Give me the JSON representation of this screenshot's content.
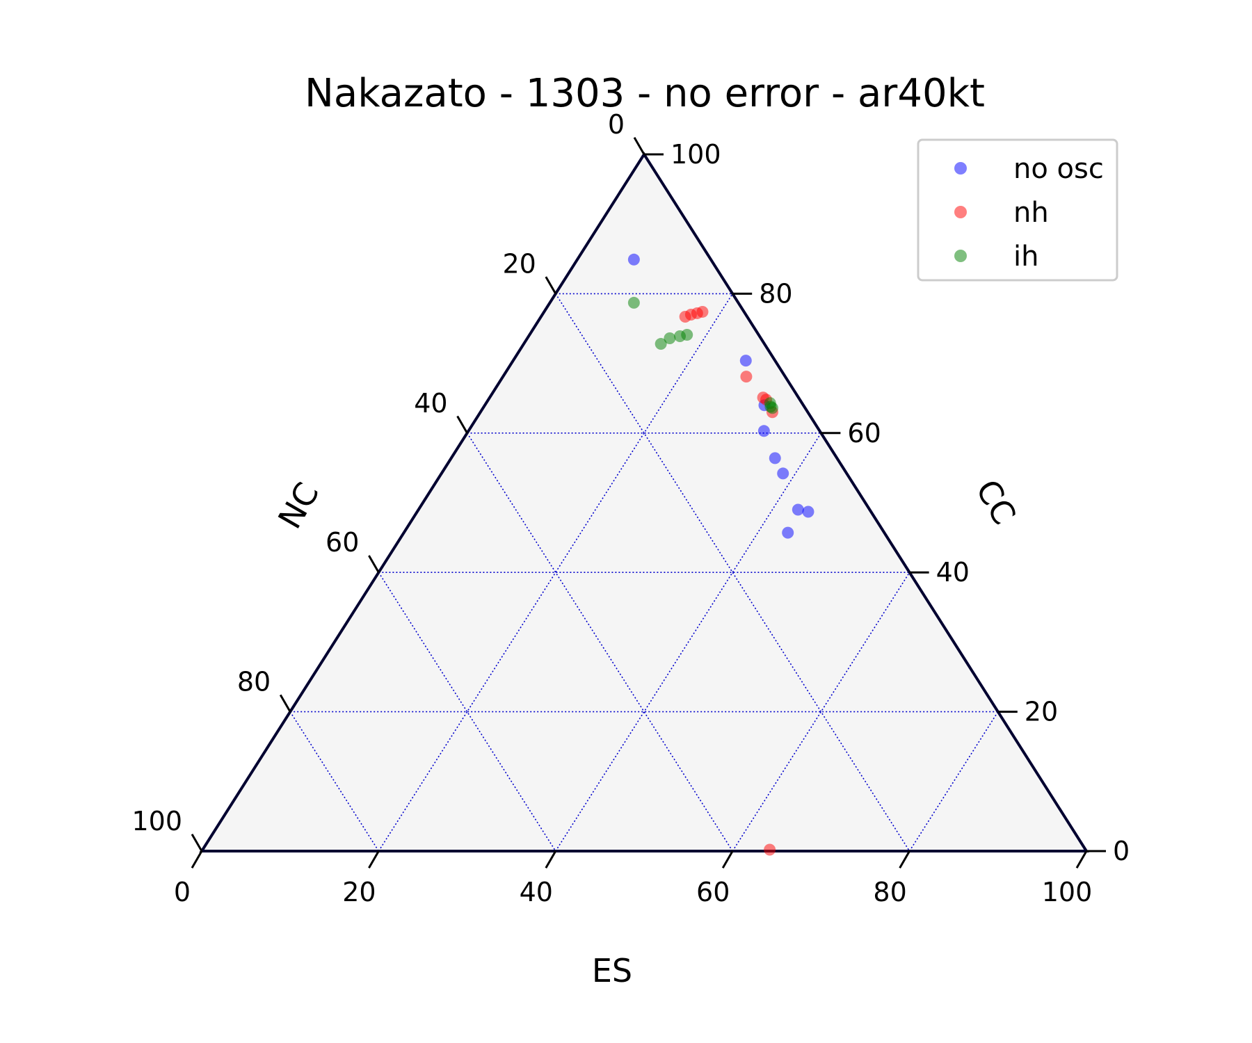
{
  "chart_data": {
    "type": "scatter",
    "subtype": "ternary",
    "title": "Nakazato - 1303 - no error - ar40kt",
    "axes": {
      "bottom": {
        "label": "ES",
        "ticks": [
          "0",
          "20",
          "40",
          "60",
          "80",
          "100"
        ],
        "range": [
          0,
          100
        ]
      },
      "right": {
        "label": "CC",
        "ticks": [
          "0",
          "20",
          "40",
          "60",
          "80",
          "100"
        ],
        "range": [
          0,
          100
        ]
      },
      "left": {
        "label": "NC",
        "ticks": [
          "0",
          "20",
          "40",
          "60",
          "80",
          "100"
        ],
        "range": [
          0,
          100
        ]
      }
    },
    "grid": true,
    "grid_color": "#0000cc",
    "background_color": "#f5f5f5",
    "legend_position": "top-right",
    "series": [
      {
        "name": "no osc",
        "color": "#0000ff",
        "points": [
          {
            "ES": 6.4,
            "CC": 84.9,
            "NC": 8.7
          },
          {
            "ES": 26.3,
            "CC": 70.4,
            "NC": 3.3
          },
          {
            "ES": 31.6,
            "CC": 64.0,
            "NC": 4.4
          },
          {
            "ES": 33.4,
            "CC": 60.3,
            "NC": 6.3
          },
          {
            "ES": 36.6,
            "CC": 56.4,
            "NC": 7.0
          },
          {
            "ES": 38.6,
            "CC": 54.2,
            "NC": 7.2
          },
          {
            "ES": 42.9,
            "CC": 49.0,
            "NC": 8.1
          },
          {
            "ES": 43.4,
            "CC": 45.7,
            "NC": 10.9
          },
          {
            "ES": 44.2,
            "CC": 48.7,
            "NC": 7.1
          }
        ]
      },
      {
        "name": "nh",
        "color": "#ff0000",
        "points": [
          {
            "ES": 17.9,
            "CC": 77.4,
            "NC": 4.7
          },
          {
            "ES": 17.4,
            "CC": 77.2,
            "NC": 5.4
          },
          {
            "ES": 16.8,
            "CC": 77.0,
            "NC": 6.2
          },
          {
            "ES": 16.3,
            "CC": 76.7,
            "NC": 7.0
          },
          {
            "ES": 27.5,
            "CC": 68.1,
            "NC": 4.4
          },
          {
            "ES": 30.9,
            "CC": 65.1,
            "NC": 4.0
          },
          {
            "ES": 31.4,
            "CC": 64.8,
            "NC": 3.8
          },
          {
            "ES": 33.0,
            "CC": 63.0,
            "NC": 4.0
          },
          {
            "ES": 64.1,
            "CC": 0.2,
            "NC": 35.7
          }
        ]
      },
      {
        "name": "ih",
        "color": "#008000",
        "points": [
          {
            "ES": 9.5,
            "CC": 78.7,
            "NC": 11.8
          },
          {
            "ES": 17.8,
            "CC": 74.1,
            "NC": 8.1
          },
          {
            "ES": 17.1,
            "CC": 73.9,
            "NC": 9.0
          },
          {
            "ES": 16.1,
            "CC": 73.6,
            "NC": 10.3
          },
          {
            "ES": 15.5,
            "CC": 72.8,
            "NC": 11.7
          },
          {
            "ES": 32.1,
            "CC": 64.3,
            "NC": 3.6
          },
          {
            "ES": 32.4,
            "CC": 63.8,
            "NC": 3.8
          },
          {
            "ES": 32.7,
            "CC": 63.6,
            "NC": 3.7
          }
        ]
      }
    ]
  }
}
